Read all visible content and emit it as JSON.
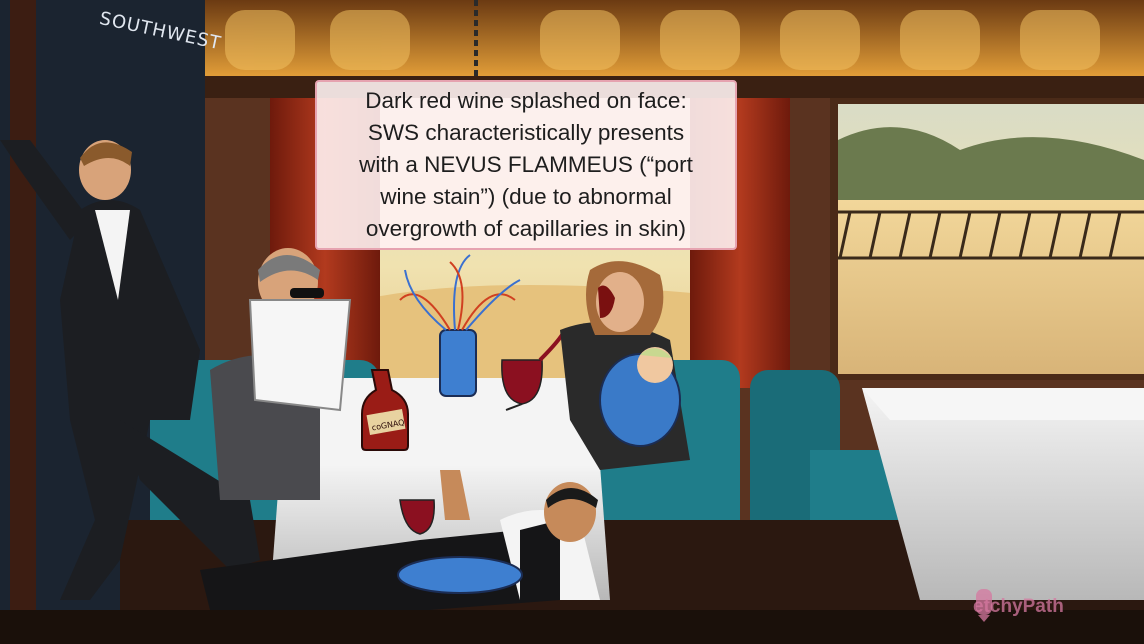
{
  "scene": {
    "sign_text": "SOUTHWEST",
    "bottle_label": "coGNAQ",
    "callout_lines": [
      "Dark red wine splashed on face:",
      "SWS characteristically presents",
      "with a NEVUS FLAMMEUS (“port",
      "wine stain”) (due to abnormal",
      "overgrowth of capillaries in skin)"
    ]
  },
  "logo": {
    "text": "etchyPath"
  },
  "colors": {
    "callout_bg": "#fff2f2",
    "callout_border": "#e6a3b0",
    "wine": "#8b1020",
    "seat_teal": "#1f7d8a",
    "curtain_red": "#9a2a16"
  }
}
